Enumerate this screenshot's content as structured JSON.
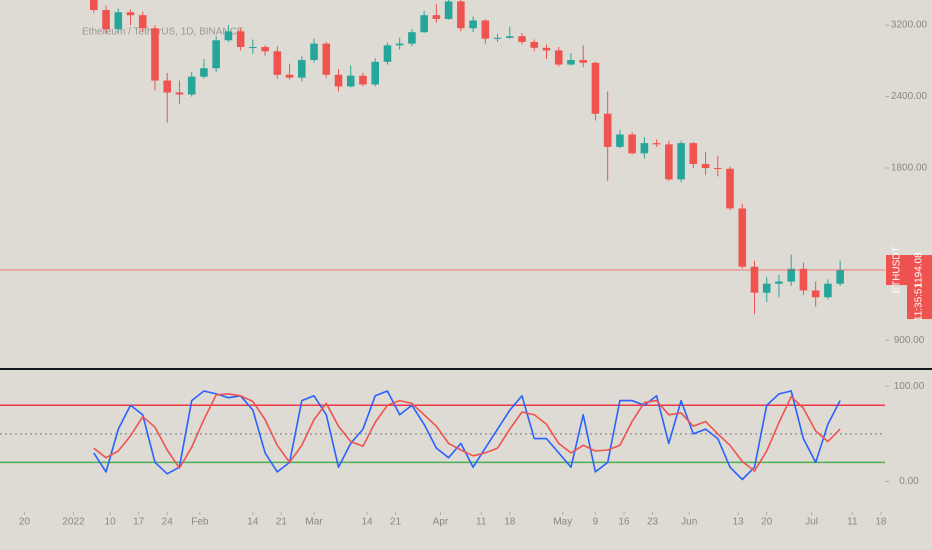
{
  "chart_data": [
    {
      "type": "candlestick",
      "title": "Ethereum / TetherUS, 1D, BINANCE",
      "log_scale": true,
      "up_color": "#26a69a",
      "down_color": "#ef5350",
      "xlim": [
        "2021-12-14",
        "2022-07-19"
      ],
      "ylim": [
        805,
        3540
      ],
      "yticks": [
        {
          "value": 900,
          "label": "900.00"
        },
        {
          "value": 1800,
          "label": "1800.00"
        },
        {
          "value": 2400,
          "label": "2400.00"
        },
        {
          "value": 3200,
          "label": "3200.00"
        }
      ],
      "xticks": [
        {
          "value": "2021-12-20",
          "label": "20"
        },
        {
          "value": "2022-01-01",
          "label": "2022"
        },
        {
          "value": "2022-01-10",
          "label": "10"
        },
        {
          "value": "2022-01-17",
          "label": "17"
        },
        {
          "value": "2022-01-24",
          "label": "24"
        },
        {
          "value": "2022-02-01",
          "label": "Feb"
        },
        {
          "value": "2022-02-14",
          "label": "14"
        },
        {
          "value": "2022-02-21",
          "label": "21"
        },
        {
          "value": "2022-03-01",
          "label": "Mar"
        },
        {
          "value": "2022-03-14",
          "label": "14"
        },
        {
          "value": "2022-03-21",
          "label": "21"
        },
        {
          "value": "2022-04-01",
          "label": "Apr"
        },
        {
          "value": "2022-04-11",
          "label": "11"
        },
        {
          "value": "2022-04-18",
          "label": "18"
        },
        {
          "value": "2022-05-01",
          "label": "May"
        },
        {
          "value": "2022-05-09",
          "label": "9"
        },
        {
          "value": "2022-05-16",
          "label": "16"
        },
        {
          "value": "2022-05-23",
          "label": "23"
        },
        {
          "value": "2022-06-01",
          "label": "Jun"
        },
        {
          "value": "2022-06-13",
          "label": "13"
        },
        {
          "value": "2022-06-20",
          "label": "20"
        },
        {
          "value": "2022-07-01",
          "label": "Jul"
        },
        {
          "value": "2022-07-11",
          "label": "11"
        },
        {
          "value": "2022-07-18",
          "label": "18"
        }
      ],
      "x": [
        "2022-01-06",
        "2022-01-09",
        "2022-01-12",
        "2022-01-15",
        "2022-01-18",
        "2022-01-21",
        "2022-01-24",
        "2022-01-27",
        "2022-01-30",
        "2022-02-02",
        "2022-02-05",
        "2022-02-08",
        "2022-02-11",
        "2022-02-14",
        "2022-02-17",
        "2022-02-20",
        "2022-02-23",
        "2022-02-26",
        "2022-03-01",
        "2022-03-04",
        "2022-03-07",
        "2022-03-10",
        "2022-03-13",
        "2022-03-16",
        "2022-03-19",
        "2022-03-22",
        "2022-03-25",
        "2022-03-28",
        "2022-03-31",
        "2022-04-03",
        "2022-04-06",
        "2022-04-09",
        "2022-04-12",
        "2022-04-15",
        "2022-04-18",
        "2022-04-21",
        "2022-04-24",
        "2022-04-27",
        "2022-04-30",
        "2022-05-03",
        "2022-05-06",
        "2022-05-09",
        "2022-05-12",
        "2022-05-15",
        "2022-05-18",
        "2022-05-21",
        "2022-05-24",
        "2022-05-27",
        "2022-05-30",
        "2022-06-02",
        "2022-06-05",
        "2022-06-08",
        "2022-06-11",
        "2022-06-14",
        "2022-06-17",
        "2022-06-20",
        "2022-06-23",
        "2022-06-26",
        "2022-06-29",
        "2022-07-02",
        "2022-07-05",
        "2022-07-08"
      ],
      "open": [
        3560,
        3400,
        3150,
        3370,
        3330,
        3160,
        2560,
        2440,
        2420,
        2600,
        2690,
        3010,
        3120,
        2930,
        2930,
        2880,
        2620,
        2590,
        2780,
        2970,
        2620,
        2500,
        2610,
        2520,
        2760,
        2950,
        2970,
        3110,
        3330,
        3280,
        3520,
        3160,
        3260,
        3030,
        3040,
        3060,
        2990,
        2920,
        2890,
        2730,
        2780,
        2750,
        2240,
        1960,
        2060,
        1910,
        1990,
        1980,
        1720,
        1990,
        1830,
        1800,
        1795,
        1530,
        1210,
        1090,
        1130,
        1140,
        1200,
        1100,
        1070,
        1130
      ],
      "high": [
        3620,
        3460,
        3420,
        3410,
        3380,
        3200,
        2640,
        2560,
        2650,
        2790,
        3060,
        3200,
        3160,
        3020,
        2950,
        2940,
        2740,
        2820,
        3030,
        2990,
        2680,
        2720,
        2640,
        2800,
        2980,
        3040,
        3150,
        3390,
        3480,
        3580,
        3540,
        3310,
        3280,
        3090,
        3180,
        3100,
        3020,
        2960,
        2930,
        2860,
        2950,
        2760,
        2450,
        2100,
        2080,
        2040,
        2020,
        2010,
        2010,
        2000,
        1920,
        1890,
        1810,
        1560,
        1240,
        1160,
        1170,
        1270,
        1230,
        1140,
        1150,
        1240
      ],
      "low": [
        3360,
        3090,
        3100,
        3200,
        3110,
        2460,
        2160,
        2330,
        2400,
        2580,
        2650,
        2990,
        2890,
        2850,
        2830,
        2580,
        2570,
        2550,
        2750,
        2590,
        2450,
        2490,
        2500,
        2500,
        2730,
        2900,
        2940,
        3100,
        3230,
        3270,
        3120,
        3110,
        2970,
        2990,
        3030,
        2960,
        2880,
        2790,
        2710,
        2720,
        2700,
        2180,
        1710,
        1950,
        1900,
        1870,
        1960,
        1710,
        1700,
        1800,
        1750,
        1740,
        1520,
        1200,
        1000,
        1050,
        1070,
        1120,
        1080,
        1030,
        1060,
        1120
      ],
      "close": [
        3400,
        3150,
        3370,
        3330,
        3160,
        2560,
        2440,
        2420,
        2600,
        2690,
        3010,
        3120,
        2930,
        2930,
        2880,
        2620,
        2590,
        2780,
        2970,
        2620,
        2500,
        2610,
        2520,
        2760,
        2950,
        2970,
        3110,
        3330,
        3280,
        3520,
        3160,
        3260,
        3030,
        3040,
        3060,
        2990,
        2920,
        2890,
        2730,
        2780,
        2750,
        2240,
        1960,
        2060,
        1910,
        1990,
        1980,
        1720,
        1990,
        1830,
        1800,
        1795,
        1530,
        1210,
        1090,
        1130,
        1140,
        1200,
        1100,
        1070,
        1130,
        1194
      ],
      "last_price": {
        "value": 1194.08,
        "label": "1194.08"
      },
      "symbol_label": "ETHUSDT",
      "countdown": "11:35:51",
      "price_line_color": "#ef5350"
    },
    {
      "type": "line",
      "ylim": [
        -30,
        115
      ],
      "yticks": [
        {
          "value": 100,
          "label": "100.00"
        },
        {
          "value": 0,
          "label": "0.00"
        }
      ],
      "levels": [
        {
          "value": 80,
          "color": "#f23645",
          "dash": false
        },
        {
          "value": 50,
          "color": "#787b86",
          "dash": true
        },
        {
          "value": 20,
          "color": "#4caf50",
          "dash": false
        }
      ],
      "series": [
        {
          "color": "#2962ff",
          "values": [
            30,
            10,
            55,
            80,
            70,
            20,
            8,
            15,
            85,
            95,
            92,
            88,
            90,
            75,
            30,
            10,
            20,
            85,
            90,
            70,
            15,
            40,
            55,
            90,
            95,
            70,
            80,
            60,
            35,
            25,
            40,
            15,
            35,
            55,
            75,
            90,
            45,
            45,
            30,
            15,
            70,
            10,
            20,
            85,
            85,
            80,
            90,
            40,
            85,
            50,
            55,
            45,
            15,
            2,
            15,
            80,
            92,
            95,
            45,
            20,
            60,
            85
          ]
        },
        {
          "color": "#ef5350",
          "values": [
            35,
            25,
            32,
            48,
            68,
            57,
            33,
            14,
            36,
            65,
            91,
            92,
            90,
            84,
            65,
            38,
            20,
            38,
            65,
            82,
            58,
            42,
            37,
            62,
            80,
            85,
            82,
            70,
            58,
            40,
            33,
            27,
            30,
            35,
            55,
            73,
            70,
            60,
            40,
            30,
            38,
            32,
            33,
            38,
            63,
            83,
            85,
            70,
            72,
            58,
            63,
            50,
            38,
            21,
            11,
            32,
            62,
            89,
            77,
            53,
            42,
            55
          ]
        }
      ]
    }
  ]
}
